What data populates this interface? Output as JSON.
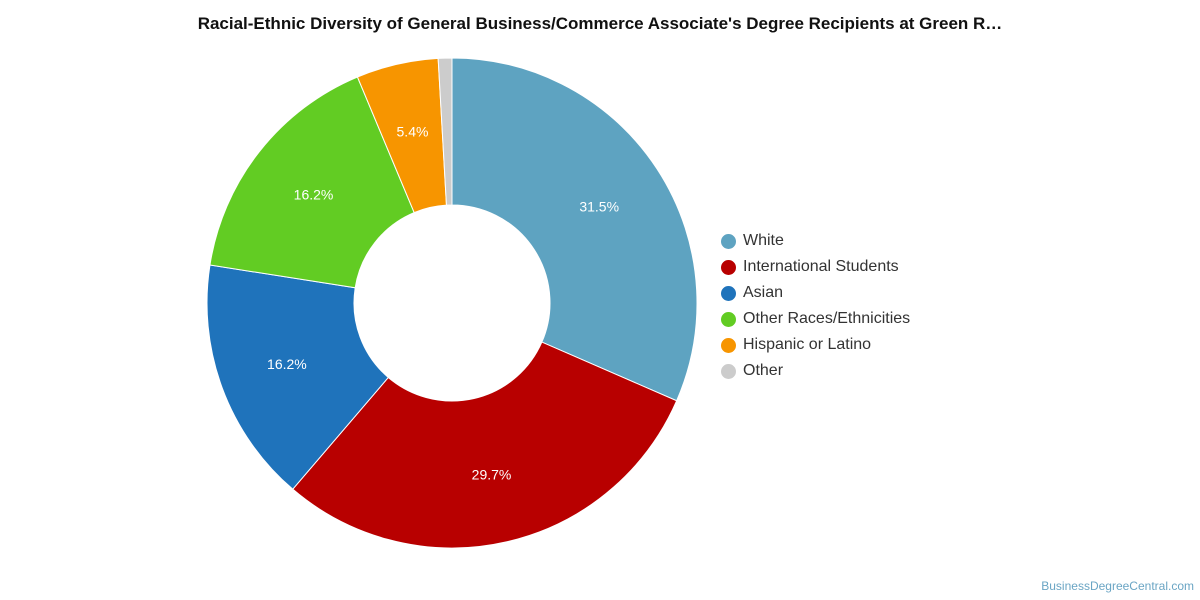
{
  "chart_data": {
    "type": "pie",
    "style": "donut",
    "title": "Racial-Ethnic Diversity of General Business/Commerce Associate's Degree Recipients at Green R…",
    "legend_position": "right",
    "series": [
      {
        "name": "White",
        "value": 31.5,
        "label": "31.5%",
        "color": "#5ea3c1"
      },
      {
        "name": "International Students",
        "value": 29.7,
        "label": "29.7%",
        "color": "#b80000"
      },
      {
        "name": "Asian",
        "value": 16.2,
        "label": "16.2%",
        "color": "#1f73bb"
      },
      {
        "name": "Other Races/Ethnicities",
        "value": 16.2,
        "label": "16.2%",
        "color": "#62cc23"
      },
      {
        "name": "Hispanic or Latino",
        "value": 5.4,
        "label": "5.4%",
        "color": "#f79500"
      },
      {
        "name": "Other",
        "value": 0.9,
        "label": "",
        "color": "#cccccc"
      }
    ]
  },
  "footer": {
    "credit": "BusinessDegreeCentral.com"
  }
}
